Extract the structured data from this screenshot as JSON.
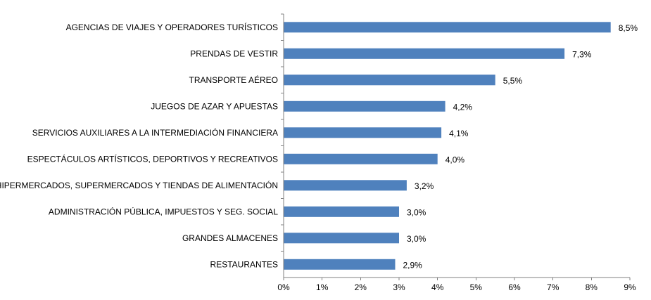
{
  "chart_data": {
    "type": "bar",
    "orientation": "horizontal",
    "categories": [
      "AGENCIAS DE VIAJES Y OPERADORES TURÍSTICOS",
      "PRENDAS DE VESTIR",
      "TRANSPORTE AÉREO",
      "JUEGOS DE AZAR Y APUESTAS",
      "SERVICIOS AUXILIARES A LA INTERMEDIACIÓN FINANCIERA",
      "ESPECTÁCULOS ARTÍSTICOS, DEPORTIVOS Y RECREATIVOS",
      "HIPERMERCADOS, SUPERMERCADOS Y TIENDAS DE ALIMENTACIÓN",
      "ADMINISTRACIÓN PÚBLICA, IMPUESTOS Y SEG. SOCIAL",
      "GRANDES ALMACENES",
      "RESTAURANTES"
    ],
    "values": [
      8.5,
      7.3,
      5.5,
      4.2,
      4.1,
      4.0,
      3.2,
      3.0,
      3.0,
      2.9
    ],
    "value_labels": [
      "8,5%",
      "7,3%",
      "5,5%",
      "4,2%",
      "4,1%",
      "4,0%",
      "3,2%",
      "3,0%",
      "3,0%",
      "2,9%"
    ],
    "x_ticks": [
      "0%",
      "1%",
      "2%",
      "3%",
      "4%",
      "5%",
      "6%",
      "7%",
      "8%",
      "9%"
    ],
    "xlim": [
      0,
      9
    ],
    "bar_color": "#4f81bd",
    "grid": false,
    "legend": "none",
    "title": "",
    "xlabel": "",
    "ylabel": ""
  }
}
